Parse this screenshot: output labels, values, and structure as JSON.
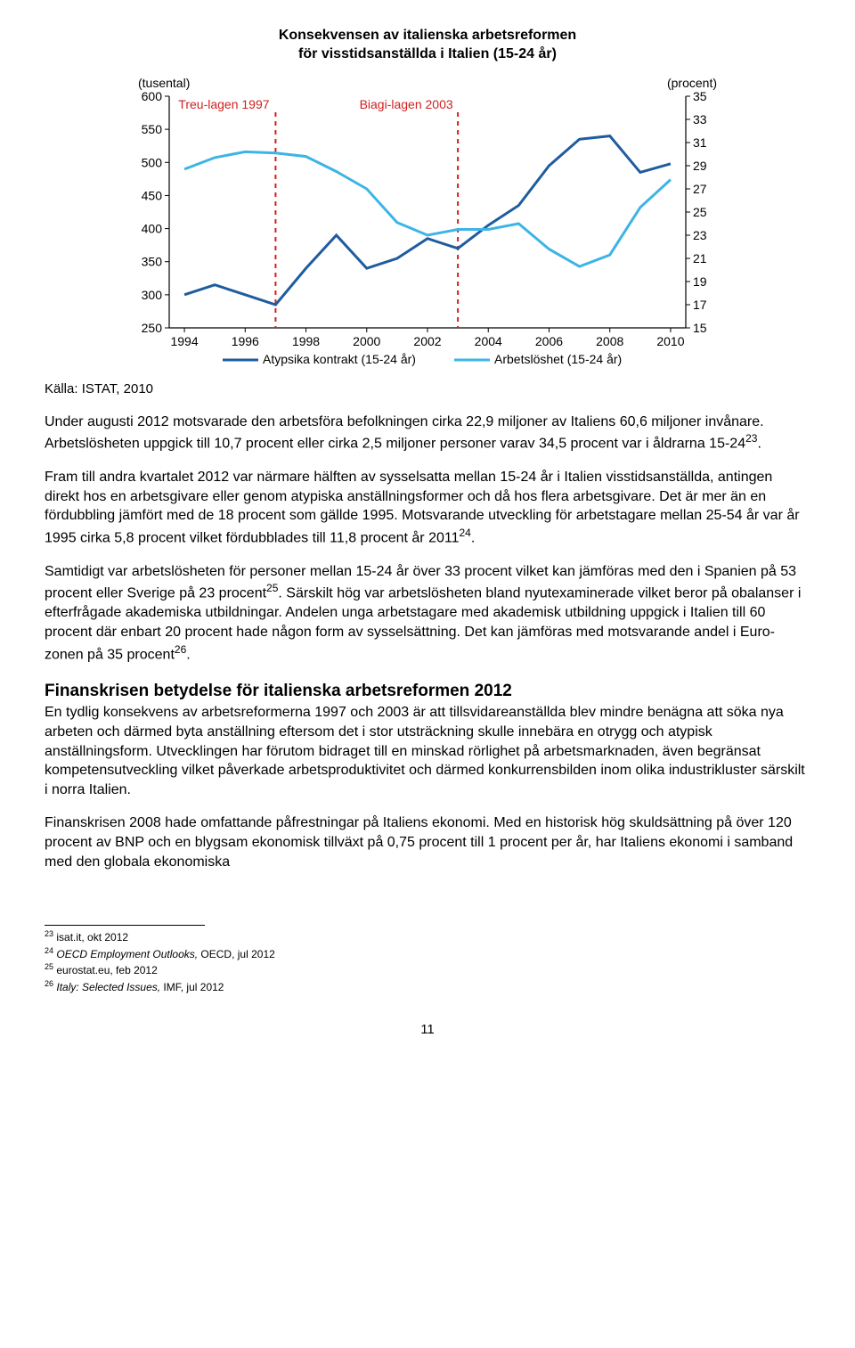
{
  "chart": {
    "title_line1": "Konsekvensen av italienska arbetsreformen",
    "title_line2": "för visstidsanställda i Italien (15-24 år)",
    "y_left_label": "(tusental)",
    "y_right_label": "(procent)",
    "y_left_ticks": [
      250,
      300,
      350,
      400,
      450,
      500,
      550,
      600
    ],
    "y_left_min": 250,
    "y_left_max": 600,
    "y_right_ticks": [
      15,
      17,
      19,
      21,
      23,
      25,
      27,
      29,
      31,
      33,
      35
    ],
    "y_right_min": 15,
    "y_right_max": 35,
    "x_ticks": [
      1994,
      1996,
      1998,
      2000,
      2002,
      2004,
      2006,
      2008,
      2010
    ],
    "x_min": 1993.5,
    "x_max": 2010.5,
    "annotations": [
      {
        "text": "Treu-lagen 1997",
        "x": 1995.3,
        "color": "#d02020",
        "line_x": 1997
      },
      {
        "text": "Biagi-lagen 2003",
        "x": 2001.3,
        "color": "#d02020",
        "line_x": 2003
      }
    ],
    "series": [
      {
        "name": "Atypsika kontrakt (15-24 år)",
        "color": "#1f5c9e",
        "axis": "left",
        "width": 3,
        "data": [
          [
            1994,
            300
          ],
          [
            1995,
            315
          ],
          [
            1996,
            300
          ],
          [
            1997,
            285
          ],
          [
            1998,
            340
          ],
          [
            1999,
            390
          ],
          [
            2000,
            340
          ],
          [
            2001,
            355
          ],
          [
            2002,
            385
          ],
          [
            2003,
            370
          ],
          [
            2004,
            405
          ],
          [
            2005,
            435
          ],
          [
            2006,
            495
          ],
          [
            2007,
            535
          ],
          [
            2008,
            540
          ],
          [
            2009,
            485
          ],
          [
            2010,
            498
          ]
        ]
      },
      {
        "name": "Arbetslöshet (15-24 år)",
        "color": "#3db4e6",
        "axis": "right",
        "width": 3,
        "data": [
          [
            1994,
            28.7
          ],
          [
            1995,
            29.7
          ],
          [
            1996,
            30.2
          ],
          [
            1997,
            30.1
          ],
          [
            1998,
            29.8
          ],
          [
            1999,
            28.5
          ],
          [
            2000,
            27.0
          ],
          [
            2001,
            24.1
          ],
          [
            2002,
            23.0
          ],
          [
            2003,
            23.5
          ],
          [
            2004,
            23.5
          ],
          [
            2005,
            24.0
          ],
          [
            2006,
            21.8
          ],
          [
            2007,
            20.3
          ],
          [
            2008,
            21.3
          ],
          [
            2009,
            25.4
          ],
          [
            2010,
            27.8
          ]
        ]
      }
    ],
    "legend_label1": "Atypsika kontrakt (15-24 år)",
    "legend_label2": "Arbetslöshet (15-24 år)",
    "plot_bg": "#ffffff",
    "axis_color": "#000000",
    "dash_pattern": "5,5"
  },
  "source": "Källa: ISTAT, 2010",
  "para1": "Under augusti 2012 motsvarade den arbetsföra befolkningen cirka 22,9 miljoner av Italiens 60,6 miljoner invånare. Arbetslösheten uppgick till 10,7 procent eller cirka 2,5 miljoner personer varav 34,5 procent var i åldrarna 15-24",
  "para1_sup": "23",
  "para1_tail": ".",
  "para2": "Fram till andra kvartalet 2012 var närmare hälften av sysselsatta mellan 15-24 år i Italien visstidsanställda, antingen direkt hos en arbetsgivare eller genom atypiska anställningsformer och då hos flera arbetsgivare. Det är mer än en fördubbling jämfört med de 18 procent som gällde 1995. Motsvarande utveckling för arbetstagare mellan 25-54 år var år 1995 cirka 5,8 procent vilket fördubblades till 11,8 procent år 2011",
  "para2_sup": "24",
  "para2_tail": ".",
  "para3a": "Samtidigt var arbetslösheten för personer mellan 15-24 år över 33 procent vilket kan jämföras med den i Spanien på 53 procent eller Sverige på 23 procent",
  "para3a_sup": "25",
  "para3b": ". Särskilt hög var arbetslösheten bland nyutexaminerade vilket beror på obalanser i efterfrågade akademiska utbildningar. Andelen unga arbetstagare med akademisk utbildning uppgick i Italien till 60 procent där enbart 20 procent hade någon form av sysselsättning. Det kan jämföras med motsvarande andel i Euro-zonen på 35 procent",
  "para3b_sup": "26",
  "para3_tail": ".",
  "section_heading": "Finanskrisen betydelse för italienska arbetsreformen 2012",
  "para4": "En tydlig konsekvens av arbetsreformerna 1997 och 2003 är att tillsvidareanställda blev mindre benägna att söka nya arbeten och därmed byta anställning eftersom det i stor utsträckning skulle innebära en otrygg och atypisk anställningsform. Utvecklingen har förutom bidraget till en minskad rörlighet på arbetsmarknaden, även begränsat kompetensutveckling vilket påverkade arbetsproduktivitet och därmed konkurrensbilden inom olika industrikluster särskilt i norra Italien.",
  "para5": "Finanskrisen 2008 hade omfattande påfrestningar på Italiens ekonomi. Med en historisk hög skuldsättning på över 120 procent av BNP och en blygsam ekonomisk tillväxt på 0,75 procent till 1 procent per år, har Italiens ekonomi i samband med den globala ekonomiska",
  "footnotes": [
    {
      "num": "23",
      "text": "isat.it, okt 2012",
      "italic": false
    },
    {
      "num": "24",
      "text": "OECD Employment Outlooks, OECD, jul 2012",
      "italic_part": "OECD Employment Outlooks,",
      "plain_part": " OECD, jul 2012"
    },
    {
      "num": "25",
      "text": "eurostat.eu, feb 2012",
      "italic": false
    },
    {
      "num": "26",
      "text": "Italy: Selected Issues, IMF, jul 2012",
      "italic_part": "Italy: Selected Issues,",
      "plain_part": " IMF, jul 2012"
    }
  ],
  "page_number": "11"
}
